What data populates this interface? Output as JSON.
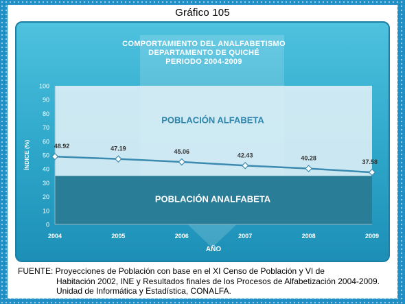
{
  "figure_label": "Gráfico 105",
  "colors": {
    "frame": "#1f8fc6",
    "panel_top": "#4ec2df",
    "panel_bottom": "#1d8fb6",
    "alfabeta_area": "#d9eef5",
    "analfabeta_area": "#2a7d96",
    "line": "#3b8ab0"
  },
  "chart_data": {
    "type": "area",
    "title": "COMPORTAMIENTO DEL ANALFABETISMO",
    "subtitle_1": "DEPARTAMENTO DE QUICHÉ",
    "subtitle_2": "PERIODO 2004-2009",
    "xlabel": "AÑO",
    "ylabel": "ÍNDICE (%)",
    "ylim": [
      0,
      100
    ],
    "yticks": [
      0,
      10,
      20,
      30,
      40,
      50,
      60,
      70,
      80,
      90,
      100
    ],
    "categories": [
      "2004",
      "2005",
      "2006",
      "2007",
      "2008",
      "2009"
    ],
    "values": [
      48.92,
      47.19,
      45.06,
      42.43,
      40.28,
      37.58
    ],
    "value_labels": [
      "48.92",
      "47.19",
      "45.06",
      "42.43",
      "40.28",
      "37.58"
    ],
    "band_level": 35,
    "area_labels": {
      "upper": "POBLACIÓN ALFABETA",
      "lower": "POBLACIÓN ANALFABETA"
    },
    "grid": false
  },
  "source": {
    "line1": "FUENTE: Proyecciones de Población con base en el XI Censo de Población y VI de",
    "line2": "Habitación 2002, INE y Resultados finales de los Procesos de Alfabetización 2004-2009.",
    "line3": "Unidad de Informática y Estadística, CONALFA."
  }
}
